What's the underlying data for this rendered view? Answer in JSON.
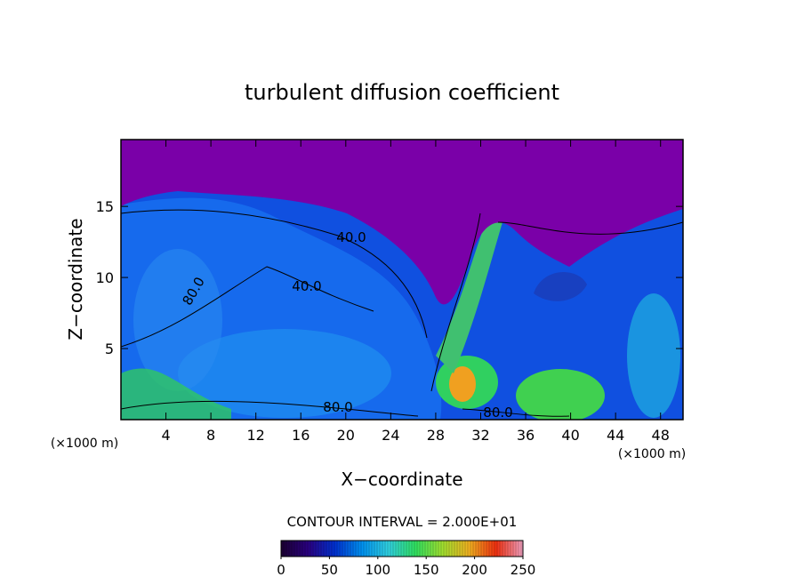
{
  "chart_data": {
    "type": "contour",
    "title": "turbulent diffusion coefficient",
    "x_label": "X−coordinate",
    "y_label": "Z−coordinate",
    "x_unit_label": "(×1000 m)",
    "x_unit_label_right": "(×1000 m)",
    "xlim": [
      0,
      50
    ],
    "ylim": [
      0,
      19.7
    ],
    "xticks": [
      4,
      8,
      12,
      16,
      20,
      24,
      28,
      32,
      36,
      40,
      44,
      48
    ],
    "yticks": [
      5,
      10,
      15
    ],
    "contour_labels": [
      "40.0",
      "40.0",
      "80.0",
      "80.0",
      "80.0"
    ],
    "contour_interval_label": "CONTOUR INTERVAL = 2.000E+01",
    "colorbar_lim": [
      0,
      250
    ],
    "colorbar_ticks": [
      0,
      50,
      100,
      150,
      200,
      250
    ],
    "colormap": [
      "#1a0030",
      "#2a0080",
      "#0030d0",
      "#0090f0",
      "#30d0e0",
      "#30e060",
      "#a0e030",
      "#f0b020",
      "#f03010",
      "#f0a0c0"
    ]
  }
}
